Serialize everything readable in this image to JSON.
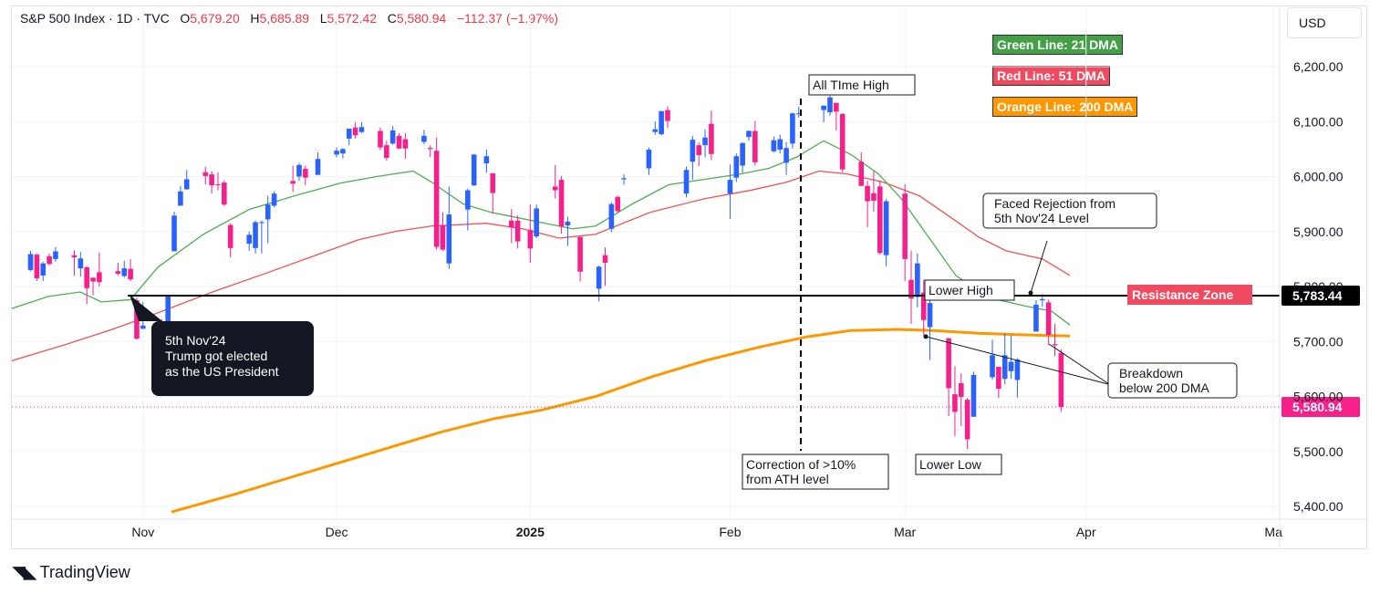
{
  "header": {
    "symbol": "S&P 500 Index · 1D · TVC",
    "o_label": "O",
    "o": "5,679.20",
    "h_label": "H",
    "h": "5,685.89",
    "l_label": "L",
    "l": "5,572.42",
    "c_label": "C",
    "c": "5,580.94",
    "change": "−112.37 (−1.97%)"
  },
  "currency": "USD",
  "brand": "TradingView",
  "legend": [
    {
      "text": "Green Line: 21 DMA",
      "color": "#43a047"
    },
    {
      "text": "Red Line: 51 DMA",
      "color": "#ef4a60"
    },
    {
      "text": "Orange Line: 200 DMA",
      "color": "#ff9800"
    }
  ],
  "colors": {
    "up": "#2962ff",
    "down": "#f7208b",
    "ma21": "#4caf50",
    "ma51": "#ef5350",
    "ma200": "#ff9800",
    "grid": "#f0f3fa",
    "axis_text": "#131722"
  },
  "chart_data": {
    "type": "candlestick",
    "title": "S&P 500 Index",
    "ylim": [
      5360,
      6260
    ],
    "y_ticks": [
      "6,200.00",
      "6,100.00",
      "6,000.00",
      "5,900.00",
      "5,800.00",
      "5,700.00",
      "5,600.00",
      "5,500.00",
      "5,400.00"
    ],
    "y_tick_values": [
      6200,
      6100,
      6000,
      5900,
      5800,
      5700,
      5600,
      5500,
      5400
    ],
    "x_ticks": [
      {
        "label": "Nov",
        "date": "2024-11-01"
      },
      {
        "label": "Dec",
        "date": "2024-12-02"
      },
      {
        "label": "2025",
        "date": "2025-01-02"
      },
      {
        "label": "Feb",
        "date": "2025-02-03"
      },
      {
        "label": "Mar",
        "date": "2025-03-03"
      },
      {
        "label": "Apr",
        "date": "2025-04-01"
      },
      {
        "label": "Ma",
        "date": "2025-05-01"
      }
    ],
    "x_range": [
      "2024-10-11",
      "2025-05-02"
    ],
    "ohlc": [
      [
        "2024-10-14",
        5830,
        5865,
        5828,
        5859
      ],
      [
        "2024-10-15",
        5858,
        5860,
        5810,
        5815
      ],
      [
        "2024-10-16",
        5820,
        5845,
        5810,
        5842
      ],
      [
        "2024-10-17",
        5855,
        5860,
        5838,
        5841
      ],
      [
        "2024-10-18",
        5850,
        5872,
        5845,
        5864
      ],
      [
        "2024-10-21",
        5857,
        5866,
        5820,
        5853
      ],
      [
        "2024-10-22",
        5833,
        5863,
        5818,
        5851
      ],
      [
        "2024-10-23",
        5835,
        5837,
        5768,
        5797
      ],
      [
        "2024-10-24",
        5816,
        5817,
        5784,
        5809
      ],
      [
        "2024-10-25",
        5826,
        5862,
        5800,
        5808
      ],
      [
        "2024-10-28",
        5828,
        5843,
        5820,
        5823
      ],
      [
        "2024-10-29",
        5819,
        5847,
        5816,
        5833
      ],
      [
        "2024-10-30",
        5832,
        5850,
        5810,
        5813
      ],
      [
        "2024-10-31",
        5775,
        5780,
        5703,
        5705
      ],
      [
        "2024-11-01",
        5723,
        5772,
        5723,
        5729
      ],
      [
        "2024-11-04",
        5725,
        5741,
        5696,
        5712
      ],
      [
        "2024-11-05",
        5722,
        5784,
        5722,
        5782
      ],
      [
        "2024-11-06",
        5864,
        5936,
        5864,
        5929
      ],
      [
        "2024-11-07",
        5947,
        5983,
        5947,
        5973
      ],
      [
        "2024-11-08",
        5977,
        6012,
        5976,
        5995
      ],
      [
        "2024-11-11",
        6008,
        6018,
        5986,
        6001
      ],
      [
        "2024-11-12",
        6004,
        6010,
        5969,
        5984
      ],
      [
        "2024-11-13",
        5986,
        6008,
        5975,
        5985
      ],
      [
        "2024-11-14",
        5989,
        5993,
        5946,
        5949
      ],
      [
        "2024-11-15",
        5912,
        5915,
        5853,
        5870
      ],
      [
        "2024-11-18",
        5878,
        5900,
        5865,
        5894
      ],
      [
        "2024-11-19",
        5870,
        5920,
        5860,
        5917
      ],
      [
        "2024-11-20",
        5917,
        5920,
        5860,
        5917
      ],
      [
        "2024-11-21",
        5922,
        5965,
        5879,
        5949
      ],
      [
        "2024-11-22",
        5947,
        5973,
        5944,
        5969
      ],
      [
        "2024-11-25",
        5992,
        6020,
        5972,
        5987
      ],
      [
        "2024-11-26",
        6000,
        6025,
        5992,
        6021
      ],
      [
        "2024-11-27",
        6014,
        6020,
        5984,
        5998
      ],
      [
        "2024-11-29",
        6003,
        6044,
        6003,
        6032
      ],
      [
        "2024-12-02",
        6040,
        6053,
        6035,
        6047
      ],
      [
        "2024-12-03",
        6042,
        6052,
        6033,
        6050
      ],
      [
        "2024-12-04",
        6069,
        6087,
        6057,
        6087
      ],
      [
        "2024-12-05",
        6089,
        6099,
        6069,
        6075
      ],
      [
        "2024-12-06",
        6081,
        6099,
        6079,
        6090
      ],
      [
        "2024-12-09",
        6083,
        6089,
        6048,
        6053
      ],
      [
        "2024-12-10",
        6057,
        6065,
        6029,
        6034
      ],
      [
        "2024-12-11",
        6060,
        6092,
        6058,
        6084
      ],
      [
        "2024-12-12",
        6074,
        6079,
        6050,
        6051
      ],
      [
        "2024-12-13",
        6068,
        6079,
        6032,
        6051
      ],
      [
        "2024-12-16",
        6063,
        6085,
        6059,
        6074
      ],
      [
        "2024-12-17",
        6052,
        6057,
        6035,
        6050
      ],
      [
        "2024-12-18",
        6047,
        6071,
        5867,
        5872
      ],
      [
        "2024-12-19",
        5912,
        5935,
        5865,
        5867
      ],
      [
        "2024-12-20",
        5842,
        5982,
        5832,
        5931
      ],
      [
        "2024-12-23",
        5940,
        5978,
        5902,
        5975
      ],
      [
        "2024-12-24",
        5984,
        6041,
        5983,
        6040
      ],
      [
        "2024-12-26",
        6024,
        6049,
        6007,
        6037
      ],
      [
        "2024-12-27",
        6006,
        6006,
        5932,
        5970
      ],
      [
        "2024-12-30",
        5920,
        5941,
        5879,
        5907
      ],
      [
        "2024-12-31",
        5920,
        5929,
        5869,
        5882
      ],
      [
        "2025-01-02",
        5903,
        5949,
        5843,
        5869
      ],
      [
        "2025-01-03",
        5891,
        5949,
        5888,
        5942
      ],
      [
        "2025-01-06",
        5982,
        6021,
        5960,
        5975
      ],
      [
        "2025-01-07",
        5994,
        6001,
        5896,
        5909
      ],
      [
        "2025-01-08",
        5911,
        5927,
        5874,
        5918
      ],
      [
        "2025-01-10",
        5890,
        5891,
        5809,
        5827
      ],
      [
        "2025-01-13",
        5796,
        5838,
        5773,
        5836
      ],
      [
        "2025-01-14",
        5857,
        5871,
        5801,
        5843
      ],
      [
        "2025-01-15",
        5905,
        5953,
        5899,
        5950
      ],
      [
        "2025-01-16",
        5963,
        5965,
        5935,
        5937
      ],
      [
        "2025-01-17",
        5995,
        6004,
        5985,
        5997
      ],
      [
        "2025-01-21",
        6015,
        6053,
        6003,
        6049
      ],
      [
        "2025-01-22",
        6081,
        6100,
        6076,
        6086
      ],
      [
        "2025-01-23",
        6077,
        6119,
        6075,
        6119
      ],
      [
        "2025-01-24",
        6121,
        6128,
        6088,
        6101
      ],
      [
        "2025-01-27",
        5969,
        6018,
        5962,
        6012
      ],
      [
        "2025-01-28",
        6027,
        6074,
        5994,
        6067
      ],
      [
        "2025-01-29",
        6057,
        6062,
        6019,
        6039
      ],
      [
        "2025-01-30",
        6057,
        6086,
        6035,
        6071
      ],
      [
        "2025-01-31",
        6096,
        6120,
        6030,
        6041
      ],
      [
        "2025-02-03",
        5969,
        6022,
        5923,
        5994
      ],
      [
        "2025-02-04",
        5998,
        6042,
        5990,
        6037
      ],
      [
        "2025-02-05",
        6020,
        6062,
        6007,
        6061
      ],
      [
        "2025-02-06",
        6072,
        6084,
        6065,
        6083
      ],
      [
        "2025-02-07",
        6083,
        6101,
        6020,
        6026
      ],
      [
        "2025-02-10",
        6046,
        6073,
        6044,
        6066
      ],
      [
        "2025-02-11",
        6049,
        6076,
        6042,
        6068
      ],
      [
        "2025-02-12",
        6025,
        6063,
        6003,
        6052
      ],
      [
        "2025-02-13",
        6060,
        6116,
        6051,
        6115
      ],
      [
        "2025-02-14",
        6115,
        6127,
        6107,
        6115
      ],
      [
        "2025-02-18",
        6121,
        6129,
        6099,
        6129
      ],
      [
        "2025-02-19",
        6117,
        6147,
        6111,
        6144
      ],
      [
        "2025-02-20",
        6134,
        6134,
        6084,
        6118
      ],
      [
        "2025-02-21",
        6114,
        6115,
        6008,
        6013
      ],
      [
        "2025-02-24",
        6027,
        6044,
        5983,
        5983
      ],
      [
        "2025-02-25",
        5983,
        5992,
        5908,
        5955
      ],
      [
        "2025-02-26",
        5970,
        6010,
        5936,
        5956
      ],
      [
        "2025-02-27",
        5982,
        5993,
        5858,
        5861
      ],
      [
        "2025-02-28",
        5857,
        5959,
        5837,
        5955
      ],
      [
        "2025-03-03",
        5969,
        5986,
        5810,
        5850
      ],
      [
        "2025-03-04",
        5812,
        5865,
        5732,
        5778
      ],
      [
        "2025-03-05",
        5781,
        5860,
        5762,
        5842
      ],
      [
        "2025-03-06",
        5789,
        5812,
        5711,
        5739
      ],
      [
        "2025-03-07",
        5726,
        5783,
        5666,
        5770
      ],
      [
        "2025-03-10",
        5706,
        5706,
        5564,
        5615
      ],
      [
        "2025-03-11",
        5604,
        5655,
        5528,
        5572
      ],
      [
        "2025-03-12",
        5624,
        5642,
        5546,
        5599
      ],
      [
        "2025-03-13",
        5594,
        5597,
        5504,
        5522
      ],
      [
        "2025-03-14",
        5563,
        5645,
        5563,
        5639
      ],
      [
        "2025-03-17",
        5635,
        5703,
        5631,
        5675
      ],
      [
        "2025-03-18",
        5654,
        5654,
        5597,
        5614
      ],
      [
        "2025-03-19",
        5632,
        5715,
        5622,
        5675
      ],
      [
        "2025-03-20",
        5646,
        5711,
        5632,
        5663
      ],
      [
        "2025-03-21",
        5630,
        5670,
        5598,
        5667
      ],
      [
        "2025-03-24",
        5718,
        5775,
        5718,
        5767
      ],
      [
        "2025-03-25",
        5775,
        5786,
        5763,
        5777
      ],
      [
        "2025-03-26",
        5771,
        5776,
        5694,
        5712
      ],
      [
        "2025-03-27",
        5695,
        5732,
        5673,
        5693
      ],
      [
        "2025-03-28",
        5679,
        5686,
        5572,
        5581
      ]
    ],
    "ma21": [
      [
        0,
        5760
      ],
      [
        40,
        5782
      ],
      [
        75,
        5790
      ],
      [
        98,
        5772
      ],
      [
        130,
        5776
      ],
      [
        160,
        5835
      ],
      [
        210,
        5895
      ],
      [
        260,
        5940
      ],
      [
        310,
        5965
      ],
      [
        360,
        5988
      ],
      [
        400,
        6000
      ],
      [
        440,
        6010
      ],
      [
        460,
        5990
      ],
      [
        495,
        5950
      ],
      [
        525,
        5935
      ],
      [
        555,
        5925
      ],
      [
        585,
        5915
      ],
      [
        615,
        5905
      ],
      [
        640,
        5910
      ],
      [
        680,
        5950
      ],
      [
        720,
        5985
      ],
      [
        760,
        5995
      ],
      [
        800,
        6005
      ],
      [
        830,
        6015
      ],
      [
        860,
        6035
      ],
      [
        890,
        6065
      ],
      [
        920,
        6040
      ],
      [
        950,
        6005
      ],
      [
        975,
        5960
      ],
      [
        1005,
        5890
      ],
      [
        1035,
        5820
      ],
      [
        1070,
        5780
      ],
      [
        1110,
        5765
      ],
      [
        1140,
        5755
      ],
      [
        1160,
        5730
      ]
    ],
    "ma51": [
      [
        0,
        5665
      ],
      [
        60,
        5695
      ],
      [
        110,
        5722
      ],
      [
        160,
        5752
      ],
      [
        220,
        5790
      ],
      [
        280,
        5825
      ],
      [
        330,
        5855
      ],
      [
        380,
        5885
      ],
      [
        420,
        5900
      ],
      [
        460,
        5910
      ],
      [
        520,
        5915
      ],
      [
        560,
        5905
      ],
      [
        600,
        5888
      ],
      [
        640,
        5895
      ],
      [
        700,
        5935
      ],
      [
        760,
        5960
      ],
      [
        810,
        5975
      ],
      [
        850,
        5990
      ],
      [
        885,
        6010
      ],
      [
        915,
        6005
      ],
      [
        955,
        5990
      ],
      [
        995,
        5965
      ],
      [
        1030,
        5925
      ],
      [
        1060,
        5890
      ],
      [
        1090,
        5865
      ],
      [
        1130,
        5850
      ],
      [
        1160,
        5820
      ]
    ],
    "ma200": [
      [
        175,
        5390
      ],
      [
        240,
        5420
      ],
      [
        300,
        5450
      ],
      [
        360,
        5480
      ],
      [
        420,
        5510
      ],
      [
        470,
        5535
      ],
      [
        530,
        5560
      ],
      [
        580,
        5575
      ],
      [
        640,
        5600
      ],
      [
        700,
        5635
      ],
      [
        760,
        5665
      ],
      [
        820,
        5690
      ],
      [
        870,
        5708
      ],
      [
        920,
        5720
      ],
      [
        970,
        5722
      ],
      [
        1010,
        5720
      ],
      [
        1060,
        5715
      ],
      [
        1110,
        5712
      ],
      [
        1160,
        5710
      ]
    ],
    "current_price_label": "5,580.94",
    "current_price": 5580.94,
    "resistance_price_label": "5,783.44",
    "resistance_price": 5783.44,
    "annotations": {
      "resistance_zone": "Resistance Zone",
      "all_time_high": "All TIme High",
      "correction": [
        "Correction of >10%",
        "from ATH level"
      ],
      "lower_high": "Lower High",
      "lower_low": "Lower Low",
      "faced_rejection": [
        "Faced Rejection from",
        "5th Nov'24 Level"
      ],
      "breakdown": [
        "Breakdown",
        "below 200 DMA"
      ],
      "election": [
        "5th Nov'24",
        "Trump got elected",
        "as the US President"
      ]
    }
  }
}
